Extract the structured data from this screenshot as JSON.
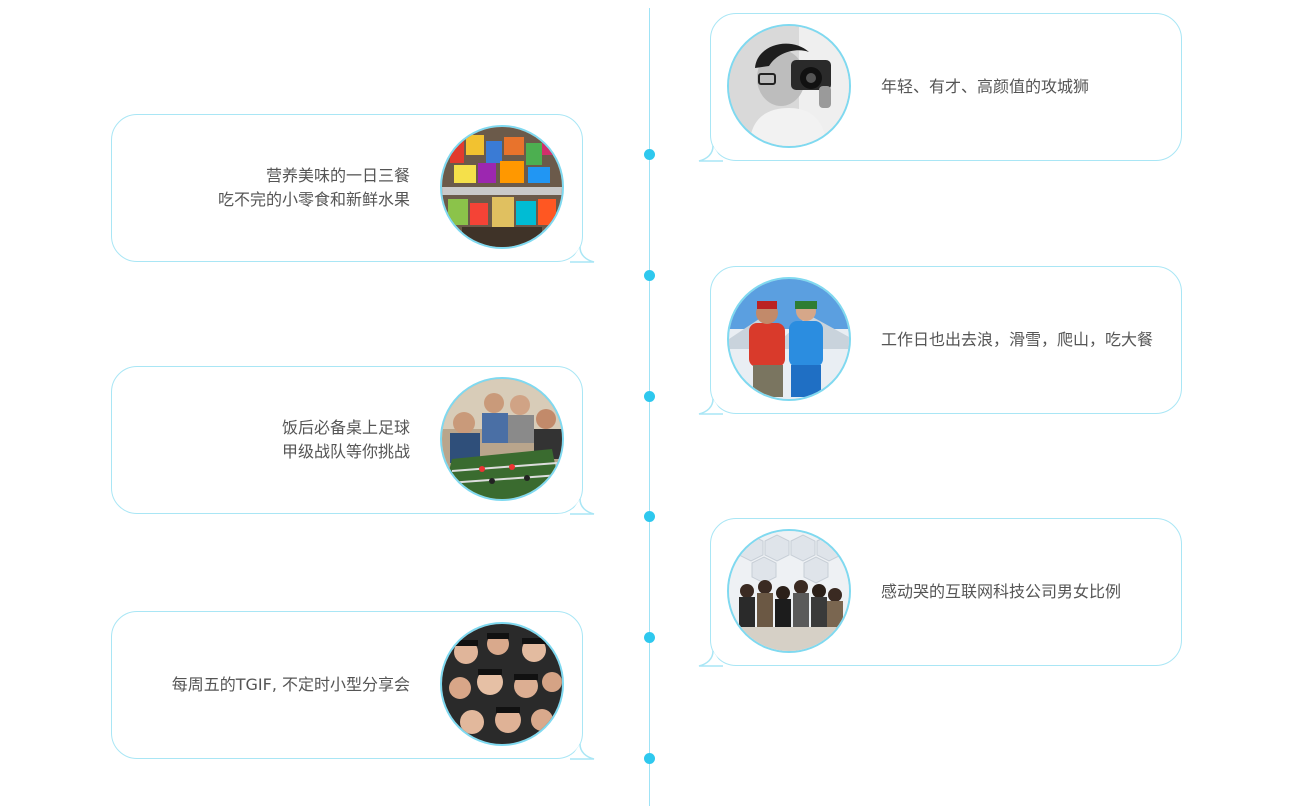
{
  "timeline": {
    "line_color": "#9fe3f6",
    "dot_color": "#2ec8ee",
    "bubble_border_color": "#a9e6f5"
  },
  "items": [
    {
      "side": "right",
      "photo": "photographer-portrait-photo",
      "lines": [
        "年轻、有才、高颜值的攻城狮"
      ]
    },
    {
      "side": "left",
      "photo": "snacks-fridge-photo",
      "lines": [
        "营养美味的一日三餐",
        "吃不完的小零食和新鲜水果"
      ]
    },
    {
      "side": "right",
      "photo": "skiing-couple-photo",
      "lines": [
        "工作日也出去浪，滑雪，爬山，吃大餐"
      ]
    },
    {
      "side": "left",
      "photo": "foosball-game-photo",
      "lines": [
        "饭后必备桌上足球",
        "甲级战队等你挑战"
      ]
    },
    {
      "side": "right",
      "photo": "team-group-photo",
      "lines": [
        "感动哭的互联网科技公司男女比例"
      ]
    },
    {
      "side": "left",
      "photo": "tgif-party-photo",
      "lines": [
        "每周五的TGIF, 不定时小型分享会"
      ]
    }
  ]
}
